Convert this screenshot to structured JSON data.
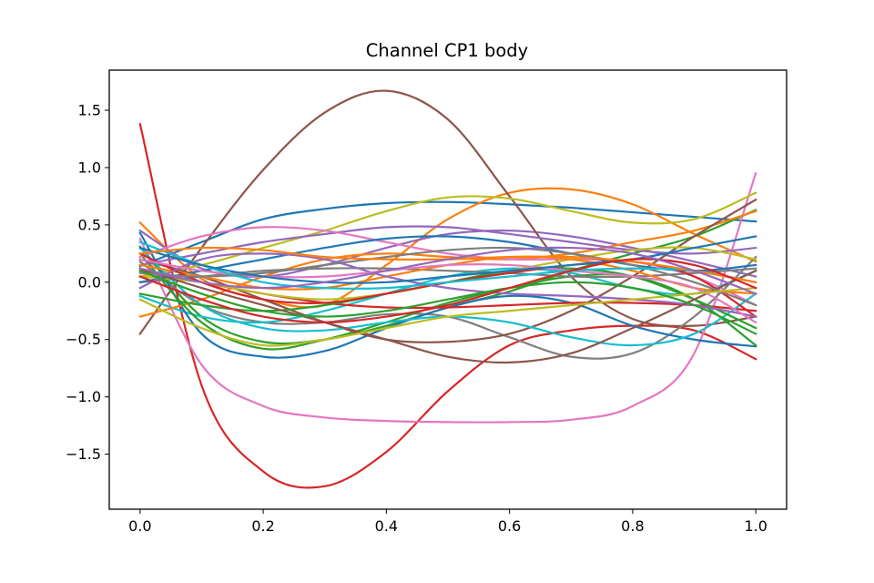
{
  "chart_data": {
    "type": "line",
    "title": "Channel CP1 body",
    "xlabel": "",
    "ylabel": "",
    "xlim": [
      -0.05,
      1.05
    ],
    "ylim": [
      -1.98,
      1.85
    ],
    "xticks": [
      0.0,
      0.2,
      0.4,
      0.6,
      0.8,
      1.0
    ],
    "xtick_labels": [
      "0.0",
      "0.2",
      "0.4",
      "0.6",
      "0.8",
      "1.0"
    ],
    "yticks": [
      -1.5,
      -1.0,
      -0.5,
      0.0,
      0.5,
      1.0,
      1.5
    ],
    "ytick_labels": [
      "−1.5",
      "−1.0",
      "−0.5",
      "0.0",
      "0.5",
      "1.0",
      "1.5"
    ],
    "grid": false,
    "legend": "none",
    "x": [
      0.0,
      0.1,
      0.2,
      0.3,
      0.4,
      0.5,
      0.6,
      0.7,
      0.8,
      0.9,
      1.0
    ],
    "series": [
      {
        "color": "#1f77b4",
        "values": [
          0.14,
          0.35,
          0.55,
          0.64,
          0.69,
          0.7,
          0.68,
          0.65,
          0.61,
          0.57,
          0.53
        ]
      },
      {
        "color": "#ff7f0e",
        "values": [
          0.52,
          0.03,
          -0.15,
          -0.2,
          0.15,
          0.55,
          0.78,
          0.81,
          0.68,
          0.42,
          0.18
        ]
      },
      {
        "color": "#2ca02c",
        "values": [
          0.31,
          -0.3,
          -0.52,
          -0.5,
          -0.38,
          -0.22,
          -0.08,
          0.1,
          0.25,
          0.4,
          0.63
        ]
      },
      {
        "color": "#d62728",
        "values": [
          1.38,
          -0.9,
          -1.65,
          -1.78,
          -1.48,
          -0.95,
          -0.55,
          -0.42,
          -0.38,
          -0.42,
          -0.67
        ]
      },
      {
        "color": "#9467bd",
        "values": [
          0.45,
          0.12,
          0.05,
          0.15,
          0.3,
          0.42,
          0.45,
          0.4,
          0.3,
          0.18,
          0.05
        ]
      },
      {
        "color": "#8c564b",
        "values": [
          -0.45,
          0.3,
          0.98,
          1.48,
          1.67,
          1.42,
          0.75,
          0.05,
          -0.32,
          -0.38,
          -0.3
        ]
      },
      {
        "color": "#e377c2",
        "values": [
          0.38,
          -0.72,
          -1.08,
          -1.18,
          -1.21,
          -1.22,
          -1.22,
          -1.2,
          -1.08,
          -0.62,
          0.95
        ]
      },
      {
        "color": "#7f7f7f",
        "values": [
          0.18,
          -0.2,
          -0.35,
          -0.35,
          -0.28,
          -0.3,
          -0.48,
          -0.65,
          -0.62,
          -0.3,
          0.22
        ]
      },
      {
        "color": "#bcbd22",
        "values": [
          0.05,
          0.15,
          0.3,
          0.45,
          0.62,
          0.74,
          0.73,
          0.62,
          0.52,
          0.55,
          0.78
        ]
      },
      {
        "color": "#17becf",
        "values": [
          -0.12,
          -0.3,
          -0.35,
          -0.25,
          -0.1,
          0.05,
          0.12,
          0.08,
          -0.05,
          -0.1,
          0.1
        ]
      },
      {
        "color": "#1f77b4",
        "values": [
          0.43,
          -0.45,
          -0.65,
          -0.6,
          -0.4,
          -0.22,
          -0.12,
          -0.18,
          -0.38,
          -0.5,
          -0.56
        ]
      },
      {
        "color": "#ff7f0e",
        "values": [
          -0.3,
          -0.15,
          0.05,
          0.2,
          0.25,
          0.22,
          0.2,
          0.25,
          0.35,
          0.45,
          0.62
        ]
      },
      {
        "color": "#2ca02c",
        "values": [
          0.25,
          -0.35,
          -0.58,
          -0.5,
          -0.35,
          -0.18,
          -0.05,
          0.05,
          0.05,
          -0.15,
          -0.55
        ]
      },
      {
        "color": "#d62728",
        "values": [
          0.1,
          0.0,
          -0.1,
          -0.18,
          -0.22,
          -0.22,
          -0.2,
          -0.18,
          -0.18,
          -0.2,
          -0.25
        ]
      },
      {
        "color": "#9467bd",
        "values": [
          0.15,
          0.25,
          0.35,
          0.42,
          0.48,
          0.48,
          0.42,
          0.35,
          0.28,
          0.25,
          0.3
        ]
      },
      {
        "color": "#8c564b",
        "values": [
          0.2,
          0.05,
          -0.15,
          -0.35,
          -0.5,
          -0.52,
          -0.45,
          -0.25,
          0.05,
          0.4,
          0.72
        ]
      },
      {
        "color": "#e377c2",
        "values": [
          0.22,
          0.4,
          0.48,
          0.45,
          0.35,
          0.25,
          0.2,
          0.2,
          0.18,
          0.05,
          -0.2
        ]
      },
      {
        "color": "#7f7f7f",
        "values": [
          0.0,
          0.05,
          0.1,
          0.12,
          0.12,
          0.1,
          0.08,
          0.05,
          0.05,
          0.08,
          0.12
        ]
      },
      {
        "color": "#bcbd22",
        "values": [
          0.05,
          0.0,
          -0.1,
          -0.15,
          -0.1,
          0.0,
          0.1,
          0.2,
          0.28,
          0.3,
          0.2
        ]
      },
      {
        "color": "#17becf",
        "values": [
          0.3,
          -0.2,
          -0.4,
          -0.42,
          -0.35,
          -0.3,
          -0.35,
          -0.48,
          -0.55,
          -0.45,
          -0.1
        ]
      },
      {
        "color": "#1f77b4",
        "values": [
          0.0,
          0.1,
          0.2,
          0.3,
          0.38,
          0.4,
          0.35,
          0.25,
          0.15,
          0.1,
          0.15
        ]
      },
      {
        "color": "#ff7f0e",
        "values": [
          0.15,
          0.05,
          -0.05,
          -0.05,
          0.05,
          0.15,
          0.22,
          0.2,
          0.1,
          -0.05,
          -0.1
        ]
      },
      {
        "color": "#2ca02c",
        "values": [
          -0.1,
          -0.2,
          -0.25,
          -0.2,
          -0.1,
          0.0,
          0.1,
          0.12,
          0.05,
          -0.15,
          -0.4
        ]
      },
      {
        "color": "#d62728",
        "values": [
          0.25,
          0.0,
          -0.15,
          -0.18,
          -0.1,
          0.0,
          0.08,
          0.15,
          0.18,
          0.05,
          -0.3
        ]
      },
      {
        "color": "#9467bd",
        "values": [
          -0.05,
          0.2,
          0.25,
          0.2,
          0.05,
          -0.05,
          -0.1,
          -0.12,
          -0.15,
          -0.2,
          -0.3
        ]
      },
      {
        "color": "#8c564b",
        "values": [
          0.12,
          -0.05,
          -0.2,
          -0.35,
          -0.5,
          -0.65,
          -0.7,
          -0.62,
          -0.4,
          -0.15,
          0.1
        ]
      },
      {
        "color": "#e377c2",
        "values": [
          0.2,
          0.1,
          0.05,
          0.05,
          0.1,
          0.15,
          0.15,
          0.1,
          0.05,
          -0.05,
          -0.35
        ]
      },
      {
        "color": "#7f7f7f",
        "values": [
          0.08,
          0.05,
          0.08,
          0.15,
          0.22,
          0.28,
          0.3,
          0.25,
          0.15,
          0.0,
          -0.2
        ]
      },
      {
        "color": "#bcbd22",
        "values": [
          -0.15,
          -0.4,
          -0.55,
          -0.5,
          -0.4,
          -0.3,
          -0.25,
          -0.2,
          -0.15,
          -0.1,
          -0.05
        ]
      },
      {
        "color": "#17becf",
        "values": [
          0.35,
          0.15,
          0.0,
          -0.05,
          -0.05,
          0.0,
          0.05,
          0.1,
          0.12,
          0.1,
          0.0
        ]
      },
      {
        "color": "#1f77b4",
        "values": [
          0.3,
          0.15,
          0.05,
          0.0,
          0.0,
          0.05,
          0.1,
          0.15,
          0.2,
          0.3,
          0.4
        ]
      },
      {
        "color": "#ff7f0e",
        "values": [
          0.25,
          0.3,
          0.28,
          0.22,
          0.2,
          0.2,
          0.22,
          0.22,
          0.18,
          0.1,
          0.0
        ]
      },
      {
        "color": "#2ca02c",
        "values": [
          0.1,
          -0.1,
          -0.25,
          -0.3,
          -0.25,
          -0.15,
          -0.05,
          0.0,
          -0.05,
          -0.2,
          -0.45
        ]
      },
      {
        "color": "#d62728",
        "values": [
          0.05,
          -0.15,
          -0.3,
          -0.35,
          -0.3,
          -0.2,
          -0.05,
          0.1,
          0.2,
          0.15,
          -0.05
        ]
      },
      {
        "color": "#9467bd",
        "values": [
          0.12,
          0.0,
          -0.05,
          0.0,
          0.1,
          0.2,
          0.28,
          0.3,
          0.25,
          0.1,
          -0.1
        ]
      }
    ]
  }
}
